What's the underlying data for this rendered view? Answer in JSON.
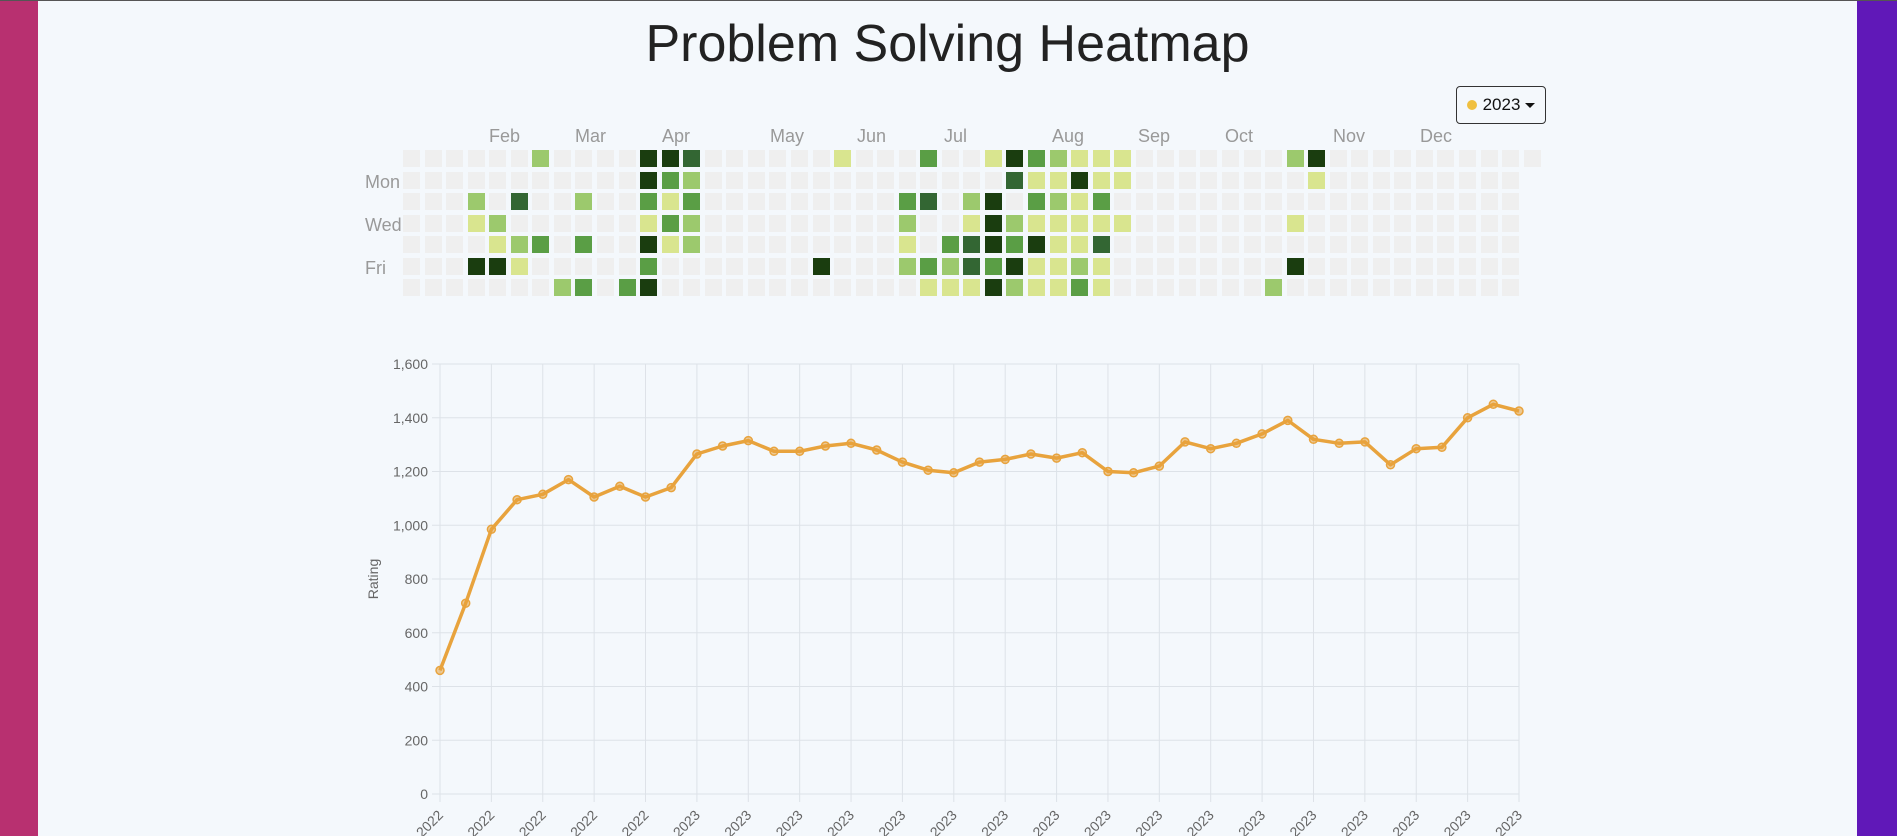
{
  "theme": {
    "background": "#f4f8fc",
    "left_bar": "#b83070",
    "right_bar": "#6018b8",
    "line_color": "#e8a33d",
    "grid_color": "#dde2e8",
    "levels": [
      "#efefef",
      "#d9e58f",
      "#9cc96d",
      "#5a9e45",
      "#336633",
      "#1a3d0f"
    ]
  },
  "header": {
    "title": "Problem Solving Heatmap"
  },
  "year_selector": {
    "label": "2023",
    "dot_color": "#f0c040",
    "icon": "caret-down-icon"
  },
  "heatmap": {
    "months": [
      "Feb",
      "Mar",
      "Apr",
      "May",
      "Jun",
      "Jul",
      "Aug",
      "Sep",
      "Oct",
      "Nov",
      "Dec"
    ],
    "day_labels": [
      "Mon",
      "Wed",
      "Fri"
    ],
    "cells": [
      {
        "w": 6,
        "d": 0,
        "l": 2
      },
      {
        "w": 11,
        "d": 0,
        "l": 5
      },
      {
        "w": 12,
        "d": 0,
        "l": 5
      },
      {
        "w": 13,
        "d": 0,
        "l": 4
      },
      {
        "w": 20,
        "d": 0,
        "l": 1
      },
      {
        "w": 24,
        "d": 0,
        "l": 3
      },
      {
        "w": 27,
        "d": 0,
        "l": 1
      },
      {
        "w": 28,
        "d": 0,
        "l": 5
      },
      {
        "w": 29,
        "d": 0,
        "l": 3
      },
      {
        "w": 30,
        "d": 0,
        "l": 2
      },
      {
        "w": 31,
        "d": 0,
        "l": 1
      },
      {
        "w": 32,
        "d": 0,
        "l": 1
      },
      {
        "w": 33,
        "d": 0,
        "l": 1
      },
      {
        "w": 41,
        "d": 0,
        "l": 2
      },
      {
        "w": 42,
        "d": 0,
        "l": 5
      },
      {
        "w": 11,
        "d": 1,
        "l": 5
      },
      {
        "w": 12,
        "d": 1,
        "l": 3
      },
      {
        "w": 13,
        "d": 1,
        "l": 2
      },
      {
        "w": 28,
        "d": 1,
        "l": 4
      },
      {
        "w": 29,
        "d": 1,
        "l": 1
      },
      {
        "w": 30,
        "d": 1,
        "l": 1
      },
      {
        "w": 31,
        "d": 1,
        "l": 5
      },
      {
        "w": 32,
        "d": 1,
        "l": 1
      },
      {
        "w": 33,
        "d": 1,
        "l": 1
      },
      {
        "w": 42,
        "d": 1,
        "l": 1
      },
      {
        "w": 3,
        "d": 2,
        "l": 2
      },
      {
        "w": 5,
        "d": 2,
        "l": 4
      },
      {
        "w": 8,
        "d": 2,
        "l": 2
      },
      {
        "w": 11,
        "d": 2,
        "l": 3
      },
      {
        "w": 12,
        "d": 2,
        "l": 1
      },
      {
        "w": 13,
        "d": 2,
        "l": 3
      },
      {
        "w": 23,
        "d": 2,
        "l": 3
      },
      {
        "w": 24,
        "d": 2,
        "l": 4
      },
      {
        "w": 26,
        "d": 2,
        "l": 2
      },
      {
        "w": 27,
        "d": 2,
        "l": 5
      },
      {
        "w": 29,
        "d": 2,
        "l": 3
      },
      {
        "w": 30,
        "d": 2,
        "l": 2
      },
      {
        "w": 31,
        "d": 2,
        "l": 1
      },
      {
        "w": 32,
        "d": 2,
        "l": 3
      },
      {
        "w": 3,
        "d": 3,
        "l": 1
      },
      {
        "w": 4,
        "d": 3,
        "l": 2
      },
      {
        "w": 11,
        "d": 3,
        "l": 1
      },
      {
        "w": 12,
        "d": 3,
        "l": 3
      },
      {
        "w": 13,
        "d": 3,
        "l": 2
      },
      {
        "w": 23,
        "d": 3,
        "l": 2
      },
      {
        "w": 26,
        "d": 3,
        "l": 1
      },
      {
        "w": 27,
        "d": 3,
        "l": 5
      },
      {
        "w": 28,
        "d": 3,
        "l": 2
      },
      {
        "w": 29,
        "d": 3,
        "l": 1
      },
      {
        "w": 30,
        "d": 3,
        "l": 1
      },
      {
        "w": 31,
        "d": 3,
        "l": 1
      },
      {
        "w": 32,
        "d": 3,
        "l": 1
      },
      {
        "w": 33,
        "d": 3,
        "l": 1
      },
      {
        "w": 41,
        "d": 3,
        "l": 1
      },
      {
        "w": 4,
        "d": 4,
        "l": 1
      },
      {
        "w": 5,
        "d": 4,
        "l": 2
      },
      {
        "w": 6,
        "d": 4,
        "l": 3
      },
      {
        "w": 8,
        "d": 4,
        "l": 3
      },
      {
        "w": 11,
        "d": 4,
        "l": 5
      },
      {
        "w": 12,
        "d": 4,
        "l": 1
      },
      {
        "w": 13,
        "d": 4,
        "l": 2
      },
      {
        "w": 23,
        "d": 4,
        "l": 1
      },
      {
        "w": 25,
        "d": 4,
        "l": 3
      },
      {
        "w": 26,
        "d": 4,
        "l": 4
      },
      {
        "w": 27,
        "d": 4,
        "l": 5
      },
      {
        "w": 28,
        "d": 4,
        "l": 3
      },
      {
        "w": 29,
        "d": 4,
        "l": 5
      },
      {
        "w": 30,
        "d": 4,
        "l": 1
      },
      {
        "w": 31,
        "d": 4,
        "l": 1
      },
      {
        "w": 32,
        "d": 4,
        "l": 4
      },
      {
        "w": 3,
        "d": 5,
        "l": 5
      },
      {
        "w": 4,
        "d": 5,
        "l": 5
      },
      {
        "w": 5,
        "d": 5,
        "l": 1
      },
      {
        "w": 11,
        "d": 5,
        "l": 3
      },
      {
        "w": 19,
        "d": 5,
        "l": 5
      },
      {
        "w": 23,
        "d": 5,
        "l": 2
      },
      {
        "w": 24,
        "d": 5,
        "l": 3
      },
      {
        "w": 25,
        "d": 5,
        "l": 2
      },
      {
        "w": 26,
        "d": 5,
        "l": 4
      },
      {
        "w": 27,
        "d": 5,
        "l": 3
      },
      {
        "w": 28,
        "d": 5,
        "l": 5
      },
      {
        "w": 29,
        "d": 5,
        "l": 1
      },
      {
        "w": 30,
        "d": 5,
        "l": 1
      },
      {
        "w": 31,
        "d": 5,
        "l": 2
      },
      {
        "w": 32,
        "d": 5,
        "l": 1
      },
      {
        "w": 41,
        "d": 5,
        "l": 5
      },
      {
        "w": 7,
        "d": 6,
        "l": 2
      },
      {
        "w": 8,
        "d": 6,
        "l": 3
      },
      {
        "w": 10,
        "d": 6,
        "l": 3
      },
      {
        "w": 11,
        "d": 6,
        "l": 5
      },
      {
        "w": 24,
        "d": 6,
        "l": 1
      },
      {
        "w": 25,
        "d": 6,
        "l": 1
      },
      {
        "w": 26,
        "d": 6,
        "l": 1
      },
      {
        "w": 27,
        "d": 6,
        "l": 5
      },
      {
        "w": 28,
        "d": 6,
        "l": 2
      },
      {
        "w": 29,
        "d": 6,
        "l": 1
      },
      {
        "w": 30,
        "d": 6,
        "l": 1
      },
      {
        "w": 31,
        "d": 6,
        "l": 3
      },
      {
        "w": 32,
        "d": 6,
        "l": 1
      },
      {
        "w": 40,
        "d": 6,
        "l": 2
      }
    ]
  },
  "chart_data": {
    "type": "line",
    "ylabel": "Rating",
    "ylim": [
      0,
      1600
    ],
    "y_ticks": [
      "0",
      "200",
      "400",
      "600",
      "800",
      "1,000",
      "1,200",
      "1,400",
      "1,600"
    ],
    "x_tick_labels": [
      "2022",
      "2022",
      "2022",
      "2022",
      "2022",
      "2023",
      "2023",
      "2023",
      "2023",
      "2023",
      "2023",
      "2023",
      "2023",
      "2023",
      "2023",
      "2023",
      "2023",
      "2023",
      "2023",
      "2023",
      "2023",
      "2023"
    ],
    "series": [
      {
        "values": [
          460,
          710,
          985,
          1095,
          1115,
          1170,
          1105,
          1145,
          1105,
          1140,
          1265,
          1295,
          1315,
          1275,
          1275,
          1295,
          1305,
          1280,
          1235,
          1205,
          1195,
          1235,
          1245,
          1265,
          1250,
          1270,
          1200,
          1195,
          1220,
          1310,
          1285,
          1305,
          1340,
          1390,
          1320,
          1305,
          1310,
          1225,
          1285,
          1290,
          1400,
          1450,
          1425
        ]
      }
    ],
    "grid": true,
    "legend": "none"
  }
}
